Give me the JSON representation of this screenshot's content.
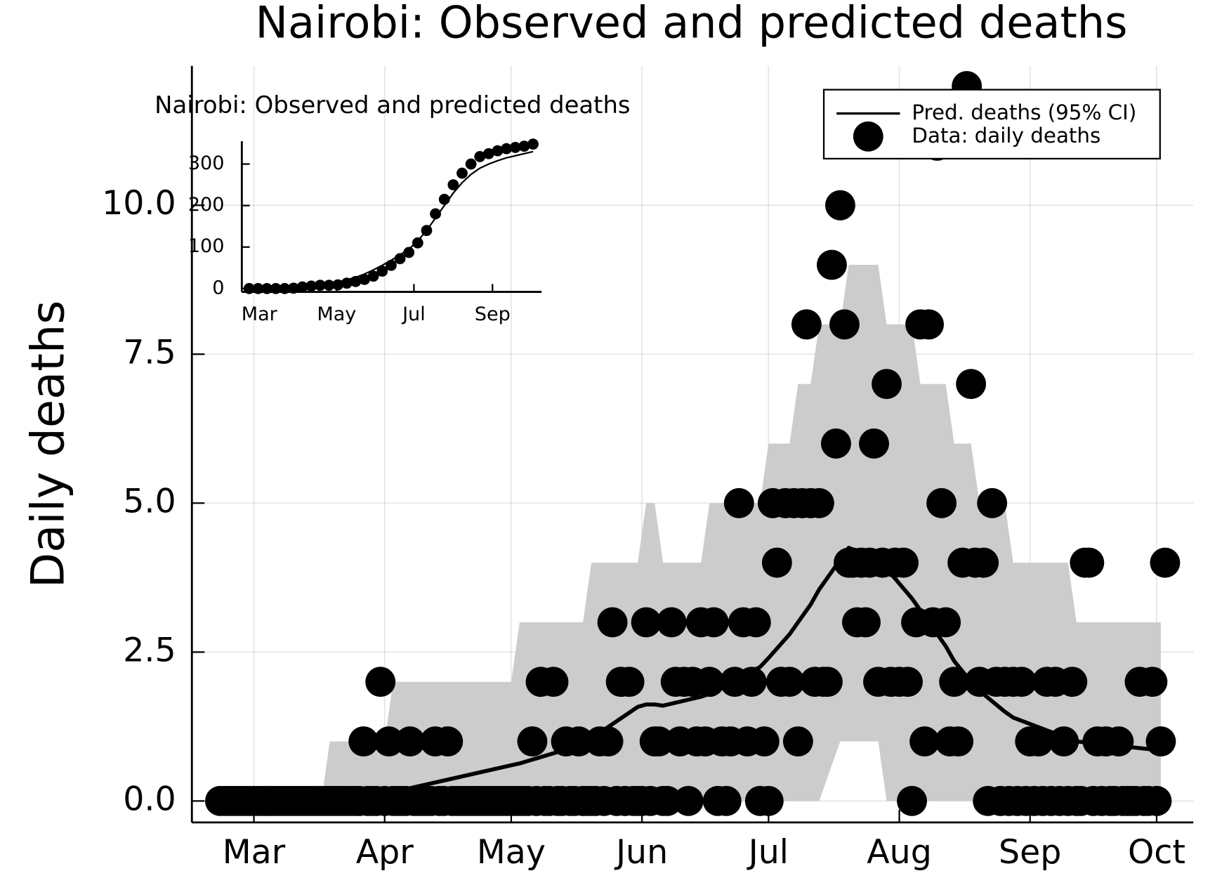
{
  "chart_data": [
    {
      "type": "line",
      "title": "Nairobi: Observed and predicted deaths",
      "ylabel": "Daily deaths",
      "xlim": [
        46.3,
        283.7
      ],
      "ylim": [
        -0.36,
        12.34
      ],
      "xticks": [
        {
          "value": 61,
          "label": "Mar"
        },
        {
          "value": 92,
          "label": "Apr"
        },
        {
          "value": 122,
          "label": "May"
        },
        {
          "value": 153,
          "label": "Jun"
        },
        {
          "value": 183,
          "label": "Jul"
        },
        {
          "value": 214,
          "label": "Aug"
        },
        {
          "value": 245,
          "label": "Sep"
        },
        {
          "value": 275,
          "label": "Oct"
        }
      ],
      "yticks": [
        {
          "value": 0,
          "label": "0.0"
        },
        2.5,
        {
          "value": 5,
          "label": "5.0"
        },
        7.5,
        {
          "value": 10,
          "label": "10.0"
        }
      ],
      "grid": true,
      "legend": "top-right",
      "series": [
        {
          "name": "Pred. deaths (95% CI)",
          "type": "line",
          "color": "#000000",
          "band_color": "#cccccc",
          "x": [
            53,
            77,
            79,
            92,
            94,
            122,
            124,
            139,
            141,
            152,
            154,
            156,
            158,
            167,
            169,
            181,
            183,
            188,
            190,
            193,
            195,
            200,
            202,
            209,
            211,
            217,
            219,
            225,
            227,
            231,
            233,
            239,
            241,
            254,
            256,
            276
          ],
          "values": [
            0,
            0,
            0,
            0.05,
            0.15,
            0.6,
            0.63,
            0.95,
            1.05,
            1.58,
            1.62,
            1.62,
            1.6,
            1.75,
            1.8,
            2.25,
            2.4,
            2.8,
            3.0,
            3.3,
            3.55,
            4.05,
            4.25,
            4.05,
            3.9,
            3.4,
            3.2,
            2.6,
            2.35,
            2.0,
            1.85,
            1.5,
            1.4,
            1.05,
            1.0,
            0.85
          ],
          "lower": [
            0,
            0,
            0,
            0,
            0,
            0,
            0,
            0,
            0,
            0,
            0,
            0,
            0,
            0,
            0,
            0,
            0,
            0,
            0,
            0,
            0,
            1,
            1,
            1,
            0,
            0,
            0,
            0,
            0,
            0,
            0,
            0,
            0,
            0,
            0,
            0
          ],
          "upper": [
            0,
            0,
            1,
            1,
            2,
            2,
            3,
            3,
            4,
            4,
            5,
            5,
            4,
            4,
            5,
            5,
            6,
            6,
            7,
            7,
            8,
            8,
            9,
            9,
            8,
            8,
            7,
            7,
            6,
            6,
            5,
            5,
            4,
            4,
            3,
            3
          ]
        },
        {
          "name": "Data: daily deaths",
          "type": "scatter",
          "color": "#000000",
          "x": [
            53,
            54,
            55,
            56,
            57,
            58,
            59,
            60,
            61,
            62,
            63,
            64,
            65,
            66,
            67,
            68,
            69,
            70,
            71,
            72,
            73,
            74,
            75,
            76,
            77,
            78,
            79,
            80,
            81,
            82,
            83,
            84,
            85,
            86,
            87,
            88,
            89,
            90,
            91,
            92,
            93,
            94,
            95,
            96,
            97,
            98,
            99,
            100,
            101,
            102,
            103,
            104,
            105,
            106,
            107,
            108,
            109,
            110,
            111,
            112,
            113,
            114,
            115,
            116,
            117,
            118,
            119,
            120,
            121,
            122,
            123,
            124,
            125,
            126,
            127,
            128,
            129,
            130,
            131,
            132,
            133,
            134,
            135,
            136,
            137,
            138,
            139,
            140,
            141,
            142,
            143,
            144,
            145,
            146,
            147,
            148,
            149,
            150,
            151,
            152,
            153,
            154,
            155,
            156,
            157,
            158,
            159,
            160,
            161,
            162,
            163,
            164,
            165,
            166,
            167,
            168,
            169,
            170,
            171,
            172,
            173,
            174,
            175,
            176,
            177,
            178,
            179,
            180,
            181,
            182,
            183,
            184,
            185,
            186,
            187,
            188,
            189,
            190,
            191,
            192,
            193,
            194,
            195,
            196,
            197,
            198,
            199,
            200,
            201,
            202,
            203,
            204,
            205,
            206,
            207,
            208,
            209,
            210,
            211,
            212,
            213,
            214,
            215,
            216,
            217,
            218,
            219,
            220,
            221,
            222,
            223,
            224,
            225,
            226,
            227,
            228,
            229,
            230,
            231,
            232,
            233,
            234,
            235,
            236,
            237,
            238,
            239,
            240,
            241,
            242,
            243,
            244,
            245,
            246,
            247,
            248,
            249,
            250,
            251,
            252,
            253,
            254,
            255,
            256,
            257,
            258,
            259,
            260,
            261,
            262,
            263,
            264,
            265,
            266,
            267,
            268,
            269,
            270,
            271,
            272,
            273,
            274,
            275,
            276,
            277
          ],
          "values": [
            0,
            0,
            0,
            0,
            0,
            0,
            0,
            0,
            0,
            0,
            0,
            0,
            0,
            0,
            0,
            0,
            0,
            0,
            0,
            0,
            0,
            0,
            0,
            0,
            0,
            0,
            0,
            0,
            0,
            0,
            0,
            0,
            0,
            0,
            1,
            0,
            0,
            0,
            2,
            0,
            1,
            0,
            0,
            0,
            0,
            1,
            0,
            0,
            0,
            0,
            0,
            1,
            0,
            0,
            1,
            0,
            0,
            0,
            0,
            0,
            0,
            0,
            0,
            0,
            0,
            0,
            0,
            0,
            0,
            0,
            0,
            0,
            0,
            0,
            1,
            0,
            2,
            0,
            0,
            2,
            0,
            0,
            1,
            0,
            0,
            1,
            0,
            0,
            0,
            0,
            1,
            0,
            1,
            3,
            0,
            2,
            0,
            2,
            0,
            0,
            0,
            3,
            0,
            1,
            1,
            0,
            0,
            3,
            2,
            1,
            2,
            0,
            2,
            1,
            3,
            1,
            2,
            3,
            0,
            1,
            0,
            1,
            2,
            5,
            3,
            1,
            2,
            3,
            0,
            1,
            0,
            5,
            4,
            2,
            5,
            2,
            5,
            1,
            5,
            8,
            5,
            2,
            5,
            2,
            2,
            9,
            6,
            10,
            8,
            4,
            4,
            3,
            4,
            3,
            4,
            6,
            2,
            4,
            7,
            2,
            4,
            2,
            4,
            2,
            0,
            3,
            8,
            1,
            8,
            3,
            11,
            5,
            3,
            1,
            2,
            1,
            4,
            12,
            7,
            4,
            2,
            4,
            0,
            5,
            2,
            0,
            2,
            0,
            2,
            0,
            2,
            0,
            1,
            0,
            1,
            0,
            2,
            0,
            2,
            0,
            1,
            0,
            2,
            0,
            0,
            4,
            4,
            0,
            1,
            0,
            1,
            0,
            0,
            1,
            0,
            0,
            0,
            0,
            2,
            0,
            0,
            2,
            0,
            1,
            4
          ]
        }
      ]
    },
    {
      "type": "line",
      "title": "Nairobi: Observed and predicted deaths",
      "xlim": [
        47.2,
        283.7
      ],
      "ylim": [
        -8,
        355
      ],
      "xticks": [
        {
          "value": 61,
          "label": "Mar"
        },
        {
          "value": 122,
          "label": "May"
        },
        {
          "value": 183,
          "label": "Jul"
        },
        {
          "value": 245,
          "label": "Sep"
        }
      ],
      "yticks": [
        0,
        100,
        200,
        300
      ],
      "series": [
        {
          "type": "line",
          "color": "#000000",
          "x": [
            53,
            60,
            67,
            74,
            81,
            88,
            95,
            102,
            109,
            116,
            123,
            130,
            137,
            144,
            151,
            158,
            165,
            172,
            179,
            186,
            193,
            200,
            207,
            214,
            221,
            228,
            235,
            242,
            249,
            256,
            263,
            270,
            277
          ],
          "values": [
            0,
            0,
            0,
            0,
            0,
            0,
            2,
            5,
            8,
            12,
            16,
            21,
            27,
            35,
            45,
            56,
            68,
            81,
            95,
            115,
            140,
            170,
            200,
            230,
            255,
            275,
            290,
            300,
            308,
            315,
            320,
            325,
            330
          ]
        },
        {
          "type": "scatter",
          "color": "#000000",
          "x": [
            53,
            60,
            67,
            74,
            81,
            88,
            95,
            102,
            109,
            116,
            123,
            130,
            137,
            144,
            151,
            158,
            165,
            172,
            179,
            186,
            193,
            200,
            207,
            214,
            221,
            228,
            235,
            242,
            249,
            256,
            263,
            270,
            277
          ],
          "values": [
            0,
            0,
            0,
            0,
            0,
            1,
            4,
            6,
            8,
            8,
            9,
            13,
            17,
            22,
            30,
            42,
            56,
            72,
            87,
            110,
            140,
            180,
            215,
            250,
            278,
            300,
            318,
            325,
            332,
            337,
            340,
            343,
            348
          ]
        }
      ]
    }
  ]
}
